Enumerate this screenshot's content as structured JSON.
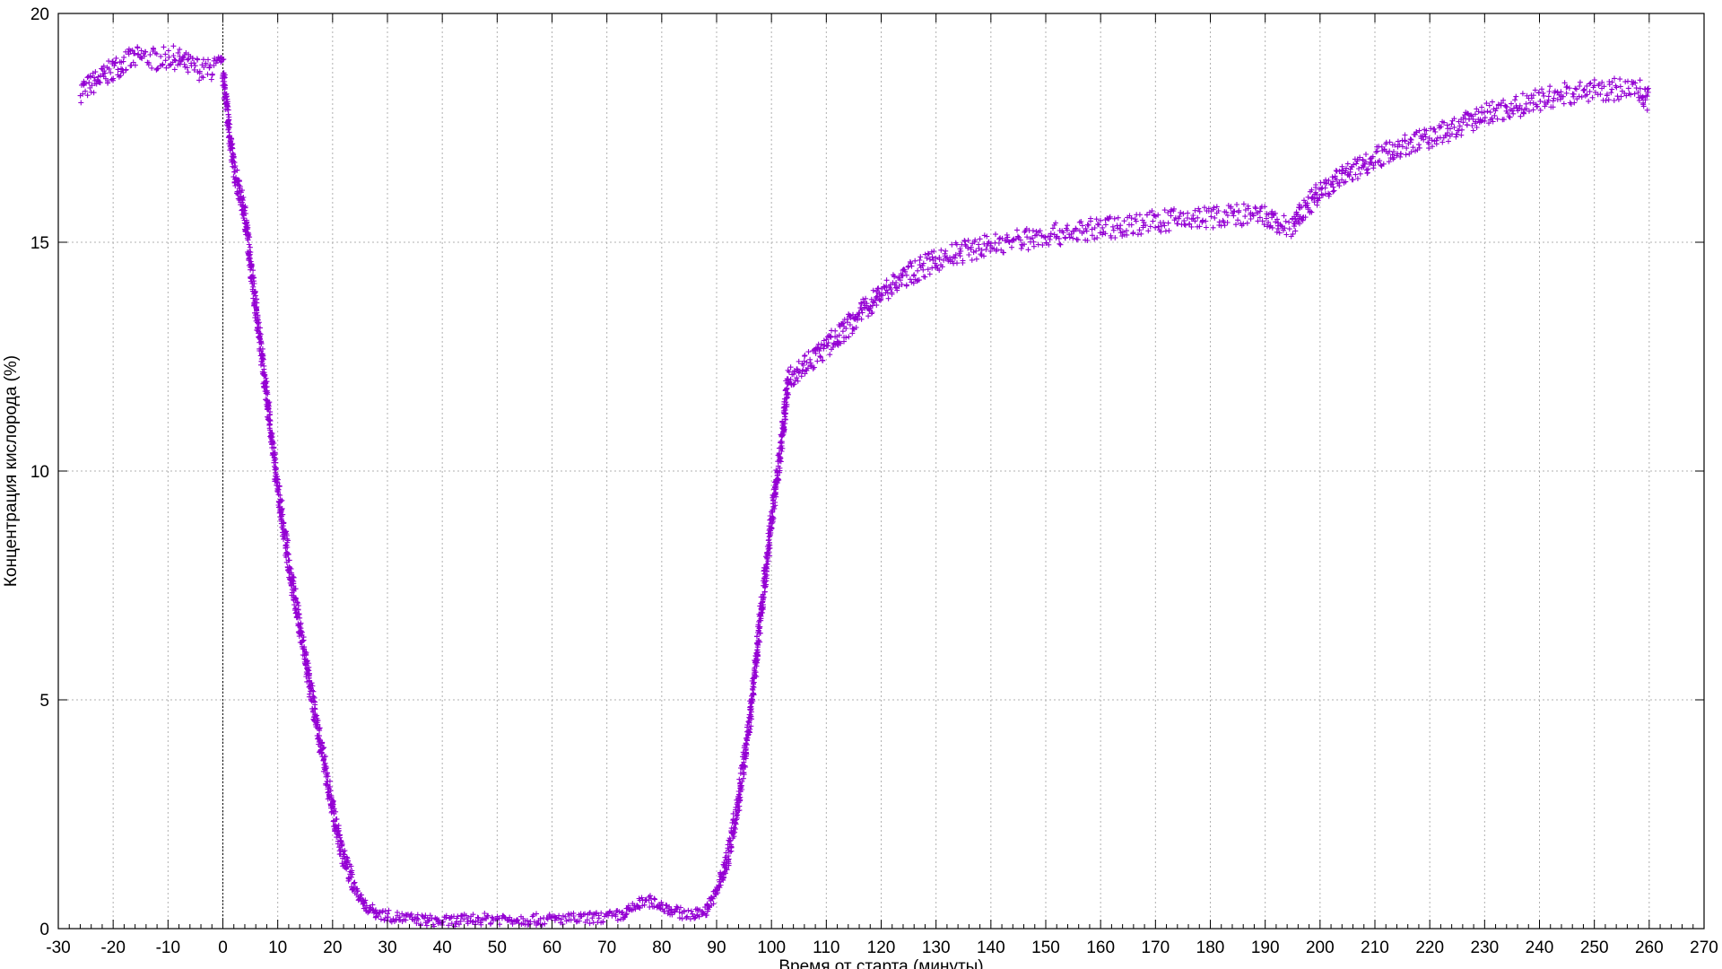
{
  "chart_data": {
    "type": "scatter",
    "title": "",
    "xlabel": "Время от старта (минуты)",
    "ylabel": "Концентрация кислорода (%)",
    "xlim": [
      -30,
      270
    ],
    "ylim": [
      0,
      20
    ],
    "xticks": [
      -30,
      -20,
      -10,
      0,
      10,
      20,
      30,
      40,
      50,
      60,
      70,
      80,
      90,
      100,
      110,
      120,
      130,
      140,
      150,
      160,
      170,
      180,
      190,
      200,
      210,
      220,
      230,
      240,
      250,
      260,
      270
    ],
    "yticks": [
      0,
      5,
      10,
      15,
      20
    ],
    "grid": true,
    "vertical_reference_x": 0,
    "legend": "none",
    "marker": "plus",
    "color": "#9400D3",
    "series": [
      {
        "band_width": 0.5,
        "points": [
          [
            -26,
            18.3
          ],
          [
            -22,
            18.6
          ],
          [
            -18,
            18.95
          ],
          [
            -15,
            19.05
          ],
          [
            -12,
            19.0
          ],
          [
            -9,
            19.05
          ],
          [
            -6,
            18.85
          ],
          [
            -3,
            18.75
          ],
          [
            -0.5,
            18.85
          ],
          [
            0,
            18.8
          ],
          [
            1,
            17.6
          ],
          [
            2,
            16.6
          ],
          [
            4,
            15.6
          ],
          [
            6,
            13.6
          ],
          [
            8,
            11.6
          ],
          [
            10,
            9.6
          ],
          [
            12,
            8.0
          ],
          [
            14,
            6.6
          ],
          [
            16,
            5.2
          ],
          [
            18,
            3.9
          ],
          [
            20,
            2.6
          ],
          [
            22,
            1.55
          ],
          [
            24,
            0.9
          ],
          [
            26,
            0.5
          ],
          [
            28,
            0.35
          ],
          [
            30,
            0.28
          ],
          [
            35,
            0.2
          ],
          [
            40,
            0.15
          ],
          [
            45,
            0.2
          ],
          [
            50,
            0.22
          ],
          [
            55,
            0.2
          ],
          [
            60,
            0.2
          ],
          [
            65,
            0.22
          ],
          [
            70,
            0.25
          ],
          [
            73,
            0.3
          ],
          [
            76,
            0.55
          ],
          [
            78,
            0.6
          ],
          [
            80,
            0.5
          ],
          [
            83,
            0.35
          ],
          [
            86,
            0.3
          ],
          [
            88,
            0.4
          ],
          [
            90,
            0.8
          ],
          [
            92,
            1.5
          ],
          [
            94,
            2.8
          ],
          [
            96,
            4.5
          ],
          [
            98,
            6.8
          ],
          [
            100,
            8.9
          ],
          [
            102,
            10.8
          ],
          [
            103,
            12.0
          ],
          [
            105,
            12.25
          ],
          [
            110,
            12.7
          ],
          [
            115,
            13.3
          ],
          [
            120,
            13.9
          ],
          [
            125,
            14.3
          ],
          [
            130,
            14.6
          ],
          [
            135,
            14.8
          ],
          [
            140,
            14.95
          ],
          [
            145,
            15.05
          ],
          [
            150,
            15.15
          ],
          [
            155,
            15.22
          ],
          [
            160,
            15.3
          ],
          [
            165,
            15.38
          ],
          [
            170,
            15.45
          ],
          [
            175,
            15.5
          ],
          [
            180,
            15.55
          ],
          [
            185,
            15.6
          ],
          [
            190,
            15.55
          ],
          [
            193,
            15.35
          ],
          [
            195,
            15.35
          ],
          [
            197,
            15.7
          ],
          [
            200,
            16.1
          ],
          [
            205,
            16.5
          ],
          [
            210,
            16.85
          ],
          [
            215,
            17.1
          ],
          [
            220,
            17.3
          ],
          [
            225,
            17.5
          ],
          [
            230,
            17.8
          ],
          [
            235,
            17.95
          ],
          [
            240,
            18.1
          ],
          [
            245,
            18.25
          ],
          [
            250,
            18.3
          ],
          [
            255,
            18.35
          ],
          [
            258,
            18.35
          ],
          [
            260,
            18.1
          ]
        ]
      }
    ]
  }
}
